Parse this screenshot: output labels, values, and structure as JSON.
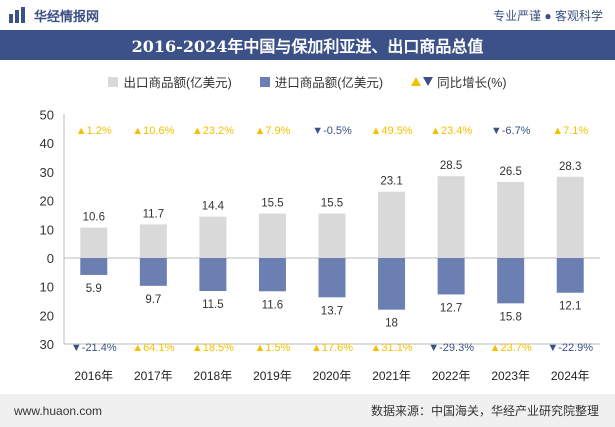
{
  "header": {
    "brand_name": "华经情报网",
    "slogan": "专业严谨 ● 客观科学"
  },
  "chart_data": {
    "type": "bar",
    "title": "2016-2024年中国与保加利亚进、出口商品总值",
    "categories": [
      "2016年",
      "2017年",
      "2018年",
      "2019年",
      "2020年",
      "2021年",
      "2022年",
      "2023年",
      "2024年"
    ],
    "series": [
      {
        "name": "出口商品额(亿美元)",
        "values": [
          10.6,
          11.7,
          14.4,
          15.5,
          15.5,
          23.1,
          28.5,
          26.5,
          28.3
        ],
        "color": "#d9d9d9"
      },
      {
        "name": "进口商品额(亿美元)",
        "values": [
          5.9,
          9.7,
          11.5,
          11.6,
          13.7,
          18,
          12.7,
          15.8,
          12.1
        ],
        "color": "#6b7fb3"
      }
    ],
    "growth_legend": "同比增长(%)",
    "export_growth": [
      1.2,
      10.6,
      23.2,
      7.9,
      -0.5,
      49.5,
      23.4,
      -6.7,
      7.1
    ],
    "import_growth": [
      -21.4,
      64.1,
      18.5,
      1.5,
      17.6,
      31.1,
      -29.3,
      23.7,
      -22.9
    ],
    "export_growth_labels": [
      "1.2%",
      "10.6%",
      "23.2%",
      "7.9%",
      "-0.5%",
      "49.5%",
      "23.4%",
      "-6.7%",
      "7.1%"
    ],
    "import_growth_labels": [
      "-21.4%",
      "64.1%",
      "18.5%",
      "1.5%",
      "17.6%",
      "31.1%",
      "-29.3%",
      "23.7%",
      "-22.9%"
    ],
    "y_ticks_top": [
      "50",
      "40",
      "30",
      "20",
      "10",
      "0"
    ],
    "y_ticks_bottom": [
      "10",
      "20",
      "30"
    ],
    "ylim": [
      -30,
      50
    ],
    "grid": false,
    "legend_position": "top",
    "up_color": "#f5c000",
    "down_color": "#3c5187"
  },
  "footer": {
    "website": "www.huaon.com",
    "source": "数据来源：中国海关，华经产业研究院整理"
  }
}
